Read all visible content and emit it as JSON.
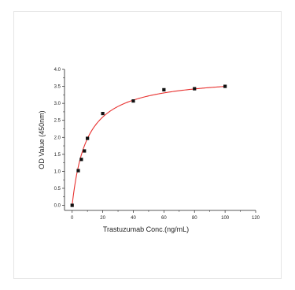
{
  "chart_data": {
    "type": "scatter",
    "title": "",
    "xlabel": "Trastuzumab Conc.(ng/mL)",
    "ylabel": "OD Value (450nm)",
    "xlim": [
      -5,
      120
    ],
    "ylim": [
      -0.15,
      4.0
    ],
    "x_ticks": [
      0,
      20,
      40,
      60,
      80,
      100,
      120
    ],
    "y_ticks": [
      0.0,
      0.5,
      1.0,
      1.5,
      2.0,
      2.5,
      3.0,
      3.5,
      4.0
    ],
    "x_tick_labels": [
      "0",
      "20",
      "40",
      "60",
      "80",
      "100",
      "120"
    ],
    "y_tick_labels": [
      "0.0",
      "0.5",
      "1.0",
      "1.5",
      "2.0",
      "2.5",
      "3.0",
      "3.5",
      "4.0"
    ],
    "grid": false,
    "series": [
      {
        "points": [
          {
            "x": 0,
            "y": 0.0
          },
          {
            "x": 4,
            "y": 1.02
          },
          {
            "x": 6,
            "y": 1.35
          },
          {
            "x": 8,
            "y": 1.6
          },
          {
            "x": 10,
            "y": 1.97
          },
          {
            "x": 20,
            "y": 2.7
          },
          {
            "x": 40,
            "y": 3.07
          },
          {
            "x": 60,
            "y": 3.4
          },
          {
            "x": 80,
            "y": 3.43
          },
          {
            "x": 100,
            "y": 3.5
          }
        ],
        "marker_color": "#111111"
      }
    ],
    "fit_curve": {
      "model": "hyperbolic",
      "ymax": 3.83,
      "kd": 9.5,
      "color": "#e8312f"
    }
  }
}
